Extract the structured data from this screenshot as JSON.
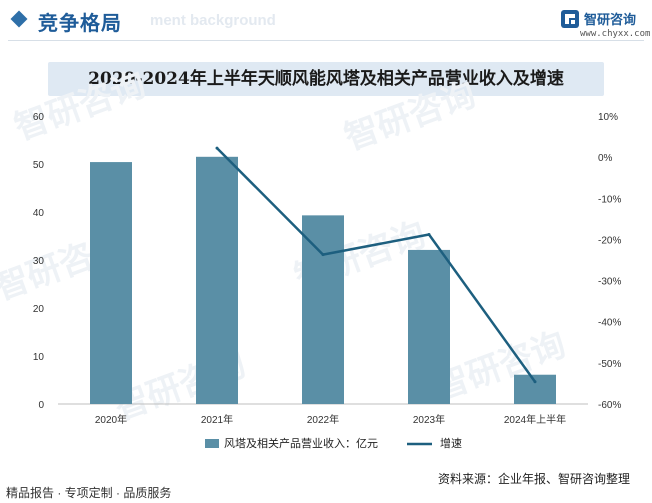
{
  "header": {
    "section_title": "竞争格局",
    "section_ghost": "ment background",
    "brand_name": "智研咨询",
    "brand_url": "www.chyxx.com"
  },
  "watermark": "智研咨询",
  "chart_data": {
    "type": "bar",
    "title": "2020-2024年上半年天顺风能风塔及相关产品营业收入及增速",
    "categories": [
      "2020年",
      "2021年",
      "2022年",
      "2023年",
      "2024年上半年"
    ],
    "series": [
      {
        "name": "风塔及相关产品营业收入：亿元",
        "type": "bar",
        "axis": "left",
        "color": "#5a8fa6",
        "values": [
          50.4,
          51.5,
          39.3,
          32.1,
          6.1
        ]
      },
      {
        "name": "增速",
        "type": "line",
        "axis": "right",
        "color": "#1d5f7f",
        "values": [
          null,
          2.2,
          -23.7,
          -18.8,
          -54.6
        ]
      }
    ],
    "y_left": {
      "min": 0,
      "max": 60,
      "ticks": [
        0,
        10,
        20,
        30,
        40,
        50,
        60
      ]
    },
    "y_right": {
      "min": -60,
      "max": 10,
      "unit": "%",
      "ticks": [
        "10%",
        "0%",
        "-10%",
        "-20%",
        "-30%",
        "-40%",
        "-50%",
        "-60%"
      ]
    },
    "legend_position": "bottom"
  },
  "footer": {
    "left_text": "精品报告 · 专项定制 · 品质服务",
    "source_text": "资料来源：企业年报、智研咨询整理"
  }
}
